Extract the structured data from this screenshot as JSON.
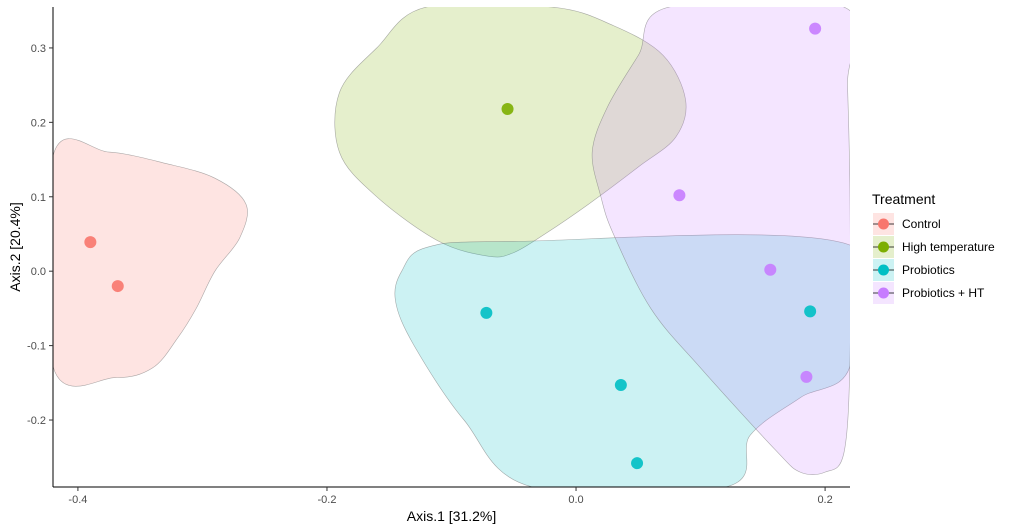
{
  "chart_data": {
    "type": "scatter",
    "xlabel": "Axis.1   [31.2%]",
    "ylabel": "Axis.2   [20.4%]",
    "xlim": [
      -0.42,
      0.22
    ],
    "ylim": [
      -0.29,
      0.355
    ],
    "x_ticks": [
      -0.4,
      -0.2,
      0.0,
      0.2
    ],
    "x_tick_labels": [
      "-0.4",
      "-0.2",
      "0.0",
      "0.2"
    ],
    "y_ticks": [
      -0.2,
      -0.1,
      0.0,
      0.1,
      0.2,
      0.3
    ],
    "y_tick_labels": [
      "-0.2",
      "-0.1",
      "0.0",
      "0.1",
      "0.2",
      "0.3"
    ],
    "grid": false,
    "legend": {
      "title": "Treatment",
      "placement": "right"
    },
    "series": [
      {
        "name": "Control",
        "color": "#F8766D",
        "points": [
          [
            -0.39,
            0.039
          ],
          [
            -0.368,
            -0.02
          ]
        ],
        "hull": [
          [
            -0.42,
            0.155
          ],
          [
            -0.375,
            0.16
          ],
          [
            -0.33,
            0.145
          ],
          [
            -0.29,
            0.125
          ],
          [
            -0.265,
            0.09
          ],
          [
            -0.27,
            0.045
          ],
          [
            -0.29,
            0.0
          ],
          [
            -0.305,
            -0.05
          ],
          [
            -0.32,
            -0.09
          ],
          [
            -0.34,
            -0.13
          ],
          [
            -0.37,
            -0.143
          ],
          [
            -0.42,
            -0.128
          ]
        ]
      },
      {
        "name": "High temperature",
        "color": "#7CAE00",
        "points": [
          [
            -0.055,
            0.218
          ]
        ],
        "hull": [
          [
            -0.12,
            0.355
          ],
          [
            -0.02,
            0.355
          ],
          [
            0.03,
            0.33
          ],
          [
            0.07,
            0.29
          ],
          [
            0.088,
            0.23
          ],
          [
            0.08,
            0.18
          ],
          [
            0.05,
            0.14
          ],
          [
            0.01,
            0.09
          ],
          [
            -0.025,
            0.05
          ],
          [
            -0.05,
            0.025
          ],
          [
            -0.07,
            0.02
          ],
          [
            -0.11,
            0.04
          ],
          [
            -0.16,
            0.1
          ],
          [
            -0.19,
            0.16
          ],
          [
            -0.19,
            0.24
          ],
          [
            -0.16,
            0.3
          ]
        ]
      },
      {
        "name": "Probiotics",
        "color": "#00BFC4",
        "points": [
          [
            -0.072,
            -0.056
          ],
          [
            0.036,
            -0.153
          ],
          [
            0.049,
            -0.258
          ],
          [
            0.188,
            -0.054
          ]
        ],
        "hull": [
          [
            -0.12,
            0.032
          ],
          [
            -0.05,
            0.04
          ],
          [
            0.22,
            0.035
          ],
          [
            0.22,
            -0.128
          ],
          [
            0.18,
            -0.17
          ],
          [
            0.14,
            -0.22
          ],
          [
            0.12,
            -0.29
          ],
          [
            -0.035,
            -0.29
          ],
          [
            -0.09,
            -0.2
          ],
          [
            -0.13,
            -0.1
          ],
          [
            -0.145,
            -0.04
          ],
          [
            -0.14,
            0.0
          ]
        ]
      },
      {
        "name": "Probiotics + HT",
        "color": "#C77CFF",
        "points": [
          [
            0.192,
            0.326
          ],
          [
            0.083,
            0.102
          ],
          [
            0.156,
            0.002
          ],
          [
            0.185,
            -0.142
          ]
        ],
        "hull": [
          [
            0.075,
            0.355
          ],
          [
            0.215,
            0.355
          ],
          [
            0.218,
            0.25
          ],
          [
            0.22,
            0.1
          ],
          [
            0.22,
            -0.12
          ],
          [
            0.215,
            -0.245
          ],
          [
            0.2,
            -0.27
          ],
          [
            0.18,
            -0.27
          ],
          [
            0.16,
            -0.24
          ],
          [
            0.1,
            -0.13
          ],
          [
            0.06,
            -0.05
          ],
          [
            0.03,
            0.05
          ],
          [
            0.02,
            0.1
          ],
          [
            0.013,
            0.16
          ],
          [
            0.025,
            0.22
          ],
          [
            0.05,
            0.29
          ]
        ]
      }
    ]
  }
}
